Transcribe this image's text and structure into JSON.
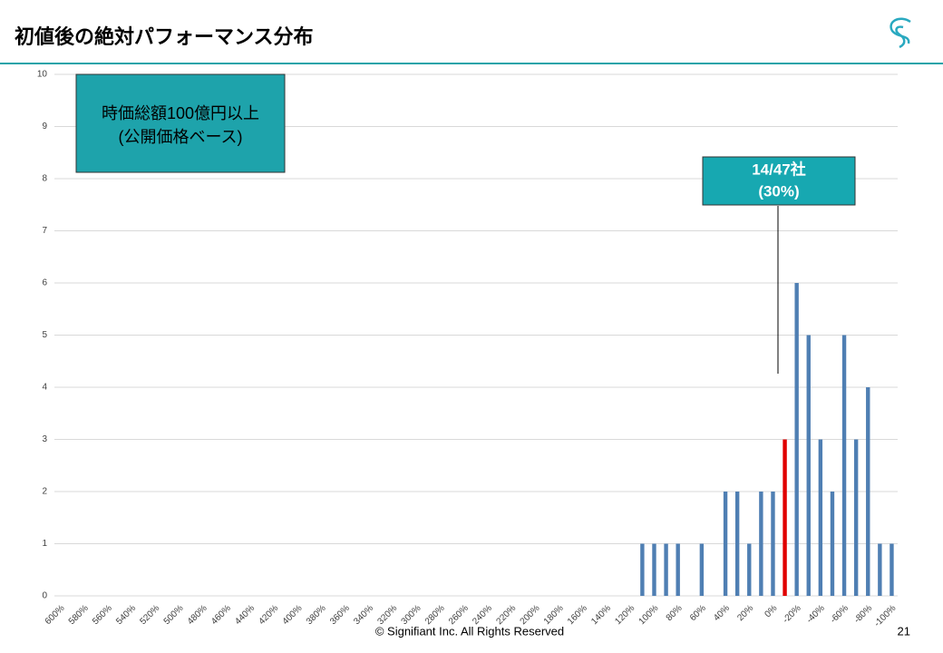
{
  "header": {
    "title": "初値後の絶対パフォーマンス分布",
    "page": "21"
  },
  "footer": {
    "copyright": "© Signifiant Inc. All Rights Reserved"
  },
  "chart_data": {
    "type": "bar",
    "categories": [
      "600%",
      null,
      "580%",
      null,
      "560%",
      null,
      "540%",
      null,
      "520%",
      null,
      "500%",
      null,
      "480%",
      null,
      "460%",
      null,
      "440%",
      null,
      "420%",
      null,
      "400%",
      null,
      "380%",
      null,
      "360%",
      null,
      "340%",
      null,
      "320%",
      null,
      "300%",
      null,
      "280%",
      null,
      "260%",
      null,
      "240%",
      null,
      "220%",
      null,
      "200%",
      null,
      "180%",
      null,
      "160%",
      null,
      "140%",
      null,
      "120%",
      null,
      "100%",
      null,
      "80%",
      null,
      "60%",
      null,
      "40%",
      null,
      "20%",
      null,
      "0%",
      null,
      "-20%",
      null,
      "-40%",
      null,
      "-60%",
      null,
      "-80%",
      null,
      "-100%"
    ],
    "values": [
      0,
      0,
      0,
      0,
      0,
      0,
      0,
      0,
      0,
      0,
      0,
      0,
      0,
      0,
      0,
      0,
      0,
      0,
      0,
      0,
      0,
      0,
      0,
      0,
      0,
      0,
      0,
      0,
      0,
      0,
      0,
      0,
      0,
      0,
      0,
      0,
      0,
      0,
      0,
      0,
      0,
      0,
      0,
      0,
      0,
      0,
      0,
      0,
      0,
      1,
      1,
      1,
      1,
      0,
      1,
      0,
      2,
      2,
      1,
      2,
      2,
      3,
      6,
      5,
      3,
      2,
      5,
      3,
      4,
      1,
      1
    ],
    "color": "#4f7fb3",
    "highlight": {
      "category": 61,
      "color": "#e00000"
    },
    "ylim": [
      0,
      10
    ],
    "yticks": [
      0,
      1,
      2,
      3,
      4,
      5,
      6,
      7,
      8,
      9,
      10
    ],
    "grid": true,
    "annotations": [
      {
        "lines": [
          "時価総額100億円以上",
          "(公開価格ベース)"
        ]
      },
      {
        "lines": [
          "14/47社",
          "(30%)"
        ]
      }
    ]
  }
}
